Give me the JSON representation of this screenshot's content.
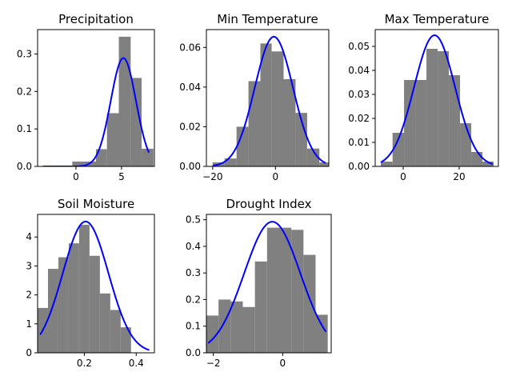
{
  "chart_data": [
    {
      "type": "histogram",
      "title": "Precipitation",
      "xlim": [
        -4.2,
        8.6
      ],
      "ylim": [
        0,
        0.365
      ],
      "xticks": [
        0,
        5
      ],
      "xtick_labels": [
        "0",
        "5"
      ],
      "yticks": [
        0.0,
        0.1,
        0.2,
        0.3
      ],
      "ytick_labels": [
        "0.0",
        "0.1",
        "0.2",
        "0.3"
      ],
      "bars": [
        {
          "x0": -0.4,
          "x1": 0.9,
          "height": 0.013
        },
        {
          "x0": 0.9,
          "x1": 2.2,
          "height": 0.013
        },
        {
          "x0": 2.2,
          "x1": 3.4,
          "height": 0.046
        },
        {
          "x0": 3.4,
          "x1": 4.7,
          "height": 0.142
        },
        {
          "x0": 4.7,
          "x1": 6.0,
          "height": 0.346
        },
        {
          "x0": 6.0,
          "x1": 7.2,
          "height": 0.236
        },
        {
          "x0": 7.2,
          "x1": 8.5,
          "height": 0.047
        }
      ],
      "curve": {
        "kind": "normal_pdf",
        "mean": 5.2,
        "sd": 1.38,
        "x_range": [
          -3.6,
          8.0
        ]
      },
      "bar_color": "#808080",
      "curve_color": "#0000ff"
    },
    {
      "type": "histogram",
      "title": "Min Temperature",
      "xlim": [
        -22,
        17
      ],
      "ylim": [
        0,
        0.069
      ],
      "xticks": [
        -20,
        0
      ],
      "xtick_labels": [
        "−20",
        "0"
      ],
      "yticks": [
        0.0,
        0.02,
        0.04,
        0.06
      ],
      "ytick_labels": [
        "0.00",
        "0.02",
        "0.04",
        "0.06"
      ],
      "bars": [
        {
          "x0": -20.0,
          "x1": -16.2,
          "height": 0.002
        },
        {
          "x0": -16.2,
          "x1": -12.4,
          "height": 0.004
        },
        {
          "x0": -12.4,
          "x1": -8.6,
          "height": 0.02
        },
        {
          "x0": -8.6,
          "x1": -4.8,
          "height": 0.043
        },
        {
          "x0": -4.8,
          "x1": -1.2,
          "height": 0.062
        },
        {
          "x0": -1.2,
          "x1": 2.6,
          "height": 0.058
        },
        {
          "x0": 2.6,
          "x1": 6.4,
          "height": 0.044
        },
        {
          "x0": 6.4,
          "x1": 10.1,
          "height": 0.027
        },
        {
          "x0": 10.1,
          "x1": 14.0,
          "height": 0.009
        },
        {
          "x0": 14.0,
          "x1": 17.0,
          "height": 0.002
        }
      ],
      "curve": {
        "kind": "normal_pdf",
        "mean": -0.5,
        "sd": 6.1,
        "x_range": [
          -20,
          16
        ]
      },
      "bar_color": "#808080",
      "curve_color": "#0000ff"
    },
    {
      "type": "histogram",
      "title": "Max Temperature",
      "xlim": [
        -10,
        34
      ],
      "ylim": [
        0,
        0.057
      ],
      "xticks": [
        0,
        20
      ],
      "xtick_labels": [
        "0",
        "20"
      ],
      "yticks": [
        0.0,
        0.01,
        0.02,
        0.03,
        0.04,
        0.05
      ],
      "ytick_labels": [
        "0.00",
        "0.01",
        "0.02",
        "0.03",
        "0.04",
        "0.05"
      ],
      "bars": [
        {
          "x0": -8.0,
          "x1": -3.8,
          "height": 0.002
        },
        {
          "x0": -3.8,
          "x1": 0.3,
          "height": 0.014
        },
        {
          "x0": 0.3,
          "x1": 4.3,
          "height": 0.036
        },
        {
          "x0": 4.3,
          "x1": 8.3,
          "height": 0.036
        },
        {
          "x0": 8.3,
          "x1": 12.3,
          "height": 0.049
        },
        {
          "x0": 12.3,
          "x1": 16.3,
          "height": 0.048
        },
        {
          "x0": 16.3,
          "x1": 20.3,
          "height": 0.038
        },
        {
          "x0": 20.3,
          "x1": 24.3,
          "height": 0.018
        },
        {
          "x0": 24.3,
          "x1": 28.3,
          "height": 0.006
        },
        {
          "x0": 28.3,
          "x1": 32.3,
          "height": 0.002
        }
      ],
      "curve": {
        "kind": "normal_pdf",
        "mean": 11.2,
        "sd": 7.3,
        "x_range": [
          -8,
          32
        ]
      },
      "bar_color": "#808080",
      "curve_color": "#0000ff"
    },
    {
      "type": "histogram",
      "title": "Soil Moisture",
      "xlim": [
        0.02,
        0.47
      ],
      "ylim": [
        0,
        4.78
      ],
      "xticks": [
        0.2,
        0.4
      ],
      "xtick_labels": [
        "0.2",
        "0.4"
      ],
      "yticks": [
        0,
        1,
        2,
        3,
        4
      ],
      "ytick_labels": [
        "0",
        "1",
        "2",
        "3",
        "4"
      ],
      "bars": [
        {
          "x0": 0.02,
          "x1": 0.06,
          "height": 1.55
        },
        {
          "x0": 0.06,
          "x1": 0.1,
          "height": 2.9
        },
        {
          "x0": 0.1,
          "x1": 0.14,
          "height": 3.3
        },
        {
          "x0": 0.14,
          "x1": 0.18,
          "height": 3.78
        },
        {
          "x0": 0.18,
          "x1": 0.22,
          "height": 4.42
        },
        {
          "x0": 0.22,
          "x1": 0.26,
          "height": 3.35
        },
        {
          "x0": 0.26,
          "x1": 0.3,
          "height": 2.05
        },
        {
          "x0": 0.3,
          "x1": 0.34,
          "height": 1.48
        },
        {
          "x0": 0.34,
          "x1": 0.38,
          "height": 0.88
        }
      ],
      "curve": {
        "kind": "normal_pdf",
        "mean": 0.205,
        "sd": 0.088,
        "x_range": [
          0.03,
          0.45
        ]
      },
      "bar_color": "#808080",
      "curve_color": "#0000ff"
    },
    {
      "type": "histogram",
      "title": "Drought Index",
      "xlim": [
        -2.2,
        1.4
      ],
      "ylim": [
        0,
        0.52
      ],
      "xticks": [
        -2,
        0
      ],
      "xtick_labels": [
        "−2",
        "0"
      ],
      "yticks": [
        0.0,
        0.1,
        0.2,
        0.3,
        0.4,
        0.5
      ],
      "ytick_labels": [
        "0.0",
        "0.1",
        "0.2",
        "0.3",
        "0.4",
        "0.5"
      ],
      "bars": [
        {
          "x0": -2.2,
          "x1": -1.85,
          "height": 0.14
        },
        {
          "x0": -1.85,
          "x1": -1.5,
          "height": 0.2
        },
        {
          "x0": -1.5,
          "x1": -1.15,
          "height": 0.193
        },
        {
          "x0": -1.15,
          "x1": -0.8,
          "height": 0.172
        },
        {
          "x0": -0.8,
          "x1": -0.45,
          "height": 0.343
        },
        {
          "x0": -0.45,
          "x1": -0.1,
          "height": 0.47
        },
        {
          "x0": -0.1,
          "x1": 0.25,
          "height": 0.47
        },
        {
          "x0": 0.25,
          "x1": 0.6,
          "height": 0.462
        },
        {
          "x0": 0.6,
          "x1": 0.95,
          "height": 0.368
        },
        {
          "x0": 0.95,
          "x1": 1.3,
          "height": 0.143
        }
      ],
      "curve": {
        "kind": "normal_pdf",
        "mean": -0.3,
        "sd": 0.81,
        "x_range": [
          -2.15,
          1.25
        ]
      },
      "bar_color": "#808080",
      "curve_color": "#0000ff"
    }
  ]
}
